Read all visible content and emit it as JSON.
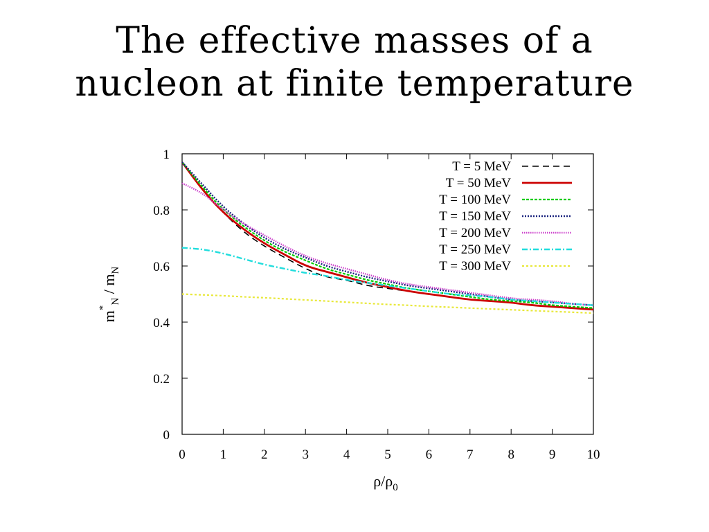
{
  "slide": {
    "title_line1": "The effective masses of a",
    "title_line2": "nucleon at finite temperature"
  },
  "chart_data": {
    "type": "line",
    "title": "",
    "xlabel": "ρ/ρ0",
    "ylabel": "m*N / mN",
    "xlim": [
      0,
      10
    ],
    "ylim": [
      0,
      1
    ],
    "xticks": [
      0,
      1,
      2,
      3,
      4,
      5,
      6,
      7,
      8,
      9,
      10
    ],
    "yticks": [
      0,
      0.2,
      0.4,
      0.6,
      0.8,
      1
    ],
    "ytick_labels": [
      "0",
      "0.2",
      "0.4",
      "0.6",
      "0.8",
      "1"
    ],
    "grid": false,
    "legend_position": "top-right",
    "x": [
      0,
      0.5,
      1,
      1.5,
      2,
      2.5,
      3,
      3.5,
      4,
      4.5,
      5,
      5.5,
      6,
      6.5,
      7,
      7.5,
      8,
      8.5,
      9,
      9.5,
      10
    ],
    "series": [
      {
        "name": "T = 5 MeV",
        "color": "#000000",
        "dash": "9,6",
        "width": 1.6,
        "values": [
          0.97,
          0.87,
          0.79,
          0.72,
          0.67,
          0.63,
          0.59,
          0.56,
          0.55,
          0.53,
          0.52,
          0.51,
          0.5,
          0.49,
          0.48,
          0.475,
          0.47,
          0.46,
          0.455,
          0.45,
          0.445
        ]
      },
      {
        "name": "T = 50 MeV",
        "color": "#cc0000",
        "dash": "",
        "width": 2.8,
        "values": [
          0.97,
          0.87,
          0.79,
          0.73,
          0.68,
          0.64,
          0.6,
          0.58,
          0.56,
          0.54,
          0.525,
          0.51,
          0.5,
          0.49,
          0.48,
          0.475,
          0.47,
          0.46,
          0.455,
          0.45,
          0.445
        ]
      },
      {
        "name": "T = 100 MeV",
        "color": "#00cc00",
        "dash": "4,2",
        "width": 2.2,
        "values": [
          0.97,
          0.88,
          0.8,
          0.74,
          0.69,
          0.65,
          0.62,
          0.59,
          0.57,
          0.55,
          0.535,
          0.52,
          0.51,
          0.5,
          0.49,
          0.48,
          0.475,
          0.47,
          0.46,
          0.455,
          0.45
        ]
      },
      {
        "name": "T = 150 MeV",
        "color": "#1a237e",
        "dash": "2,2",
        "width": 2.4,
        "values": [
          0.97,
          0.89,
          0.81,
          0.75,
          0.7,
          0.66,
          0.63,
          0.6,
          0.58,
          0.56,
          0.545,
          0.53,
          0.52,
          0.51,
          0.5,
          0.49,
          0.48,
          0.475,
          0.47,
          0.465,
          0.46
        ]
      },
      {
        "name": "T = 200 MeV",
        "color": "#cc44cc",
        "dash": "1.5,1.5",
        "width": 2.4,
        "values": [
          0.895,
          0.86,
          0.8,
          0.75,
          0.71,
          0.67,
          0.635,
          0.61,
          0.59,
          0.57,
          0.55,
          0.535,
          0.525,
          0.515,
          0.505,
          0.495,
          0.485,
          0.48,
          0.475,
          0.465,
          0.46
        ]
      },
      {
        "name": "T = 250 MeV",
        "color": "#22dddd",
        "dash": "8,3,2,3",
        "width": 2.4,
        "values": [
          0.665,
          0.66,
          0.645,
          0.625,
          0.605,
          0.59,
          0.575,
          0.565,
          0.55,
          0.54,
          0.53,
          0.52,
          0.51,
          0.5,
          0.495,
          0.49,
          0.48,
          0.475,
          0.47,
          0.465,
          0.46
        ]
      },
      {
        "name": "T = 300 MeV",
        "color": "#e8e83a",
        "dash": "3,3",
        "width": 2.2,
        "values": [
          0.5,
          0.497,
          0.494,
          0.49,
          0.487,
          0.483,
          0.479,
          0.475,
          0.471,
          0.467,
          0.463,
          0.46,
          0.456,
          0.453,
          0.45,
          0.447,
          0.444,
          0.441,
          0.438,
          0.435,
          0.432
        ]
      }
    ]
  }
}
